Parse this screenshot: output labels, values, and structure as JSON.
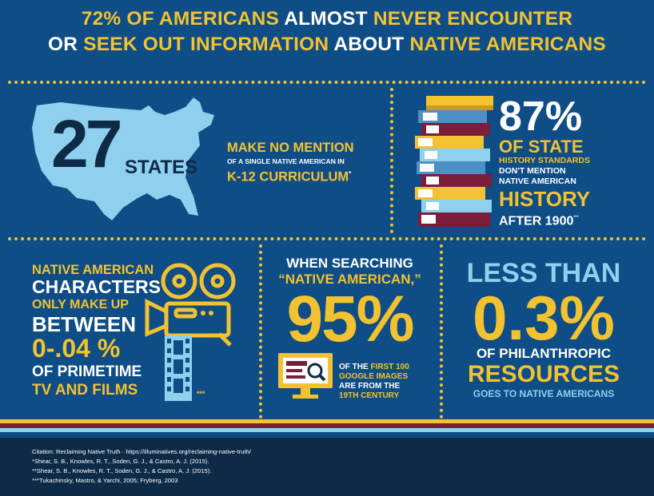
{
  "header": {
    "line1": [
      {
        "text": "72% OF AMERICANS ",
        "color": "yellow"
      },
      {
        "text": "ALMOST ",
        "color": "white"
      },
      {
        "text": "NEVER ENCOUNTER",
        "color": "yellow"
      }
    ],
    "line2": [
      {
        "text": "OR ",
        "color": "white"
      },
      {
        "text": "SEEK OUT INFORMATION ",
        "color": "yellow"
      },
      {
        "text": "ABOUT ",
        "color": "white"
      },
      {
        "text": "NATIVE AMERICANS",
        "color": "yellow"
      }
    ]
  },
  "states_panel": {
    "number": "27",
    "unit": "STATES",
    "line1": "MAKE NO MENTION",
    "line2": "OF A SINGLE NATIVE AMERICAN IN",
    "line3": "K-12 CURRICULUM",
    "footnote": "*"
  },
  "history_panel": {
    "percent": "87%",
    "line1": "OF STATE",
    "line2": "HISTORY STANDARDS",
    "line3": "DON'T MENTION",
    "line4": "NATIVE AMERICAN",
    "line5": "HISTORY",
    "line6": "AFTER 1900",
    "footnote": "**"
  },
  "tv_panel": {
    "line1": "NATIVE AMERICAN",
    "line2": "CHARACTERS",
    "line3": "ONLY MAKE UP",
    "line4": "BETWEEN",
    "line5": "0-.04 %",
    "line6": "OF PRIMETIME",
    "line7": "TV AND FILMS",
    "footnote": "***"
  },
  "google_panel": {
    "line1": "WHEN SEARCHING",
    "line2": "“NATIVE AMERICAN,”",
    "percent": "95%",
    "caption1a": "OF THE ",
    "caption1b": "FIRST 100",
    "caption2": "GOOGLE IMAGES",
    "caption3": "ARE FROM THE",
    "caption4": "19TH CENTURY"
  },
  "philanthropy_panel": {
    "line1": "LESS THAN",
    "percent": "0.3%",
    "line2": "OF PHILANTHROPIC",
    "line3": "RESOURCES",
    "line4": "GOES TO NATIVE AMERICANS"
  },
  "citations": [
    "Citation: Reclaiming Native Truth · https://illuminatives.org/reclaiming-native-truth/",
    "*Shear, S. B., Knowles, R. T., Soden, G. J., & Castro, A. J. (2015).",
    "**Shear, S. B., Knowles, R. T., Soden, G. J., & Castro, A. J. (2015).",
    "***Tukachinsky, Mastro, & Yarchi, 2005; Fryberg, 2003"
  ],
  "colors": {
    "background": "#0f4d86",
    "yellow": "#f2c230",
    "light_blue": "#8fd0ee",
    "dark_navy": "#0d2a47",
    "maroon": "#7a1e3a"
  },
  "icons": [
    "usa-map-icon",
    "book-stack-icon",
    "film-camera-icon",
    "film-strip-icon",
    "monitor-search-icon"
  ]
}
